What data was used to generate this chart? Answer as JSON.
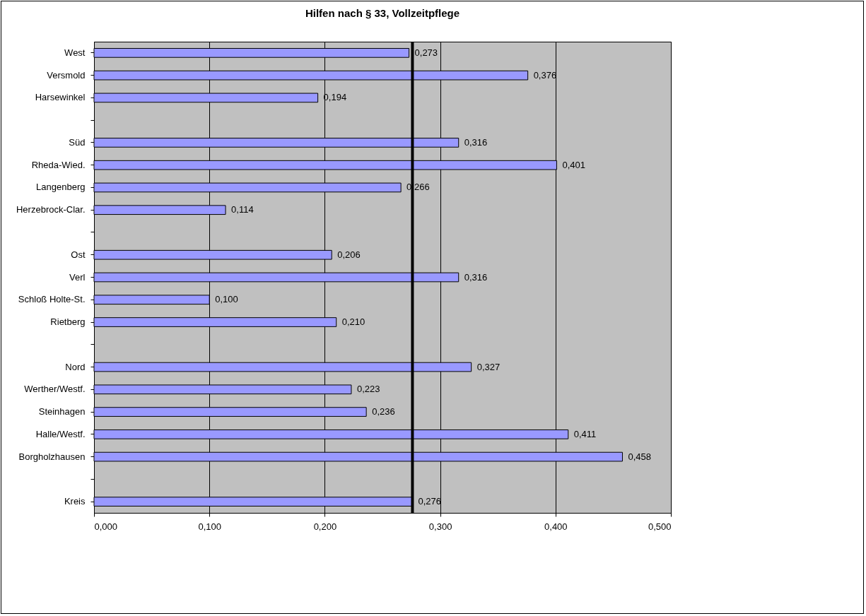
{
  "chart_data": {
    "type": "bar",
    "title": "Hilfen nach § 33, Vollzeitpflege",
    "orientation": "horizontal",
    "categories": [
      "West",
      "Versmold",
      "Harsewinkel",
      null,
      "Süd",
      "Rheda-Wied.",
      "Langenberg",
      "Herzebrock-Clar.",
      null,
      "Ost",
      "Verl",
      "Schloß Holte-St.",
      "Rietberg",
      null,
      "Nord",
      "Werther/Westf.",
      "Steinhagen",
      "Halle/Westf.",
      "Borgholzhausen",
      null,
      "Kreis"
    ],
    "values": [
      0.273,
      0.376,
      0.194,
      null,
      0.316,
      0.401,
      0.266,
      0.114,
      null,
      0.206,
      0.316,
      0.1,
      0.21,
      null,
      0.327,
      0.223,
      0.236,
      0.411,
      0.458,
      null,
      0.276
    ],
    "value_labels": [
      "0,273",
      "0,376",
      "0,194",
      null,
      "0,316",
      "0,401",
      "0,266",
      "0,114",
      null,
      "0,206",
      "0,316",
      "0,100",
      "0,210",
      null,
      "0,327",
      "0,223",
      "0,236",
      "0,411",
      "0,458",
      null,
      "0,276"
    ],
    "color": "#9999ff",
    "xlim": [
      0,
      0.5
    ],
    "xticks": [
      {
        "value": 0,
        "label": "0,000"
      },
      {
        "value": 0.1,
        "label": "0,100"
      },
      {
        "value": 0.2,
        "label": "0,200"
      },
      {
        "value": 0.3,
        "label": "0,300"
      },
      {
        "value": 0.4,
        "label": "0,400"
      },
      {
        "value": 0.5,
        "label": "0,500"
      }
    ],
    "grid": "x",
    "ref_lines": [
      {
        "axis": "x",
        "value": 0.276
      }
    ]
  }
}
